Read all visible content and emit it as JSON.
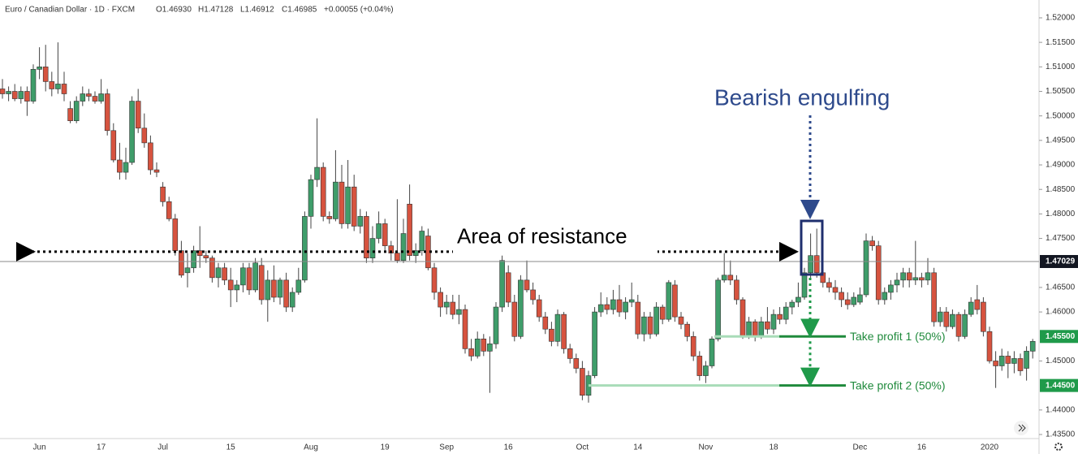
{
  "chart_data": {
    "type": "candlestick",
    "symbol": "Euro / Canadian Dollar · 1D · FXCM",
    "quote": [
      "O1.46930",
      "H1.47128",
      "L1.46912",
      "C1.46985",
      "+0.00055 (+0.04%)"
    ],
    "up_color": "#3f9d6a",
    "down_color": "#d6533f",
    "ylim": [
      1.43417,
      1.52364
    ],
    "yticks": [
      {
        "value": 1.52,
        "label": "1.52000"
      },
      {
        "value": 1.515,
        "label": "1.51500"
      },
      {
        "value": 1.51,
        "label": "1.51000"
      },
      {
        "value": 1.505,
        "label": "1.50500"
      },
      {
        "value": 1.5,
        "label": "1.50000"
      },
      {
        "value": 1.495,
        "label": "1.49500"
      },
      {
        "value": 1.49,
        "label": "1.49000"
      },
      {
        "value": 1.485,
        "label": "1.48500"
      },
      {
        "value": 1.48,
        "label": "1.48000"
      },
      {
        "value": 1.475,
        "label": "1.47500"
      },
      {
        "value": 1.465,
        "label": "1.46500"
      },
      {
        "value": 1.46,
        "label": "1.46000"
      },
      {
        "value": 1.45,
        "label": "1.45000"
      },
      {
        "value": 1.44,
        "label": "1.44000"
      },
      {
        "value": 1.435,
        "label": "1.43500"
      }
    ],
    "last_price": 1.47029,
    "resistance": {
      "label": "Area of resistance",
      "value": 1.4723
    },
    "pattern_label": "Bearish engulfing",
    "take_profits": [
      {
        "value": 1.455,
        "label": "1.45500",
        "text": "Take profit 1 (50%)"
      },
      {
        "value": 1.445,
        "label": "1.44500",
        "text": "Take profit 2 (50%)"
      }
    ],
    "categories": [
      null,
      null,
      null,
      null,
      null,
      null,
      "Jun",
      null,
      null,
      null,
      null,
      null,
      null,
      null,
      null,
      null,
      "17",
      null,
      null,
      null,
      null,
      null,
      null,
      null,
      null,
      null,
      "Jul",
      null,
      null,
      null,
      null,
      null,
      null,
      null,
      null,
      null,
      null,
      "15",
      null,
      null,
      null,
      null,
      null,
      null,
      null,
      null,
      null,
      null,
      null,
      null,
      "Aug",
      null,
      null,
      null,
      null,
      null,
      null,
      null,
      null,
      null,
      null,
      null,
      "19",
      null,
      null,
      null,
      null,
      null,
      null,
      null,
      null,
      null,
      "Sep",
      null,
      null,
      null,
      null,
      null,
      null,
      null,
      null,
      null,
      "16",
      null,
      null,
      null,
      null,
      null,
      null,
      null,
      null,
      null,
      null,
      null,
      "Oct",
      null,
      null,
      null,
      null,
      null,
      null,
      null,
      null,
      "14",
      null,
      null,
      null,
      null,
      null,
      null,
      null,
      null,
      null,
      null,
      "Nov",
      null,
      null,
      null,
      null,
      null,
      null,
      null,
      null,
      null,
      null,
      "18",
      null,
      null,
      null,
      null,
      null,
      null,
      null,
      null,
      null,
      null,
      null,
      null,
      null,
      "Dec",
      null,
      null,
      null,
      null,
      null,
      null,
      null,
      null,
      null,
      "16",
      null,
      null,
      null,
      null,
      null,
      null,
      null,
      null,
      null,
      null,
      "2020",
      null,
      null,
      null,
      null,
      null,
      null,
      null
    ],
    "ohlc": [
      [
        1.5055,
        1.5075,
        1.5035,
        1.5045
      ],
      [
        1.5045,
        1.506,
        1.503,
        1.505
      ],
      [
        1.505,
        1.5065,
        1.503,
        1.5035
      ],
      [
        1.5035,
        1.506,
        1.5025,
        1.505
      ],
      [
        1.505,
        1.506,
        1.5,
        1.503
      ],
      [
        1.503,
        1.5105,
        1.5025,
        1.5095
      ],
      [
        1.5095,
        1.514,
        1.5075,
        1.51
      ],
      [
        1.51,
        1.5145,
        1.505,
        1.507
      ],
      [
        1.507,
        1.509,
        1.504,
        1.5055
      ],
      [
        1.5055,
        1.515,
        1.5045,
        1.5065
      ],
      [
        1.5065,
        1.509,
        1.503,
        1.5045
      ],
      [
        1.5015,
        1.503,
        1.4985,
        1.499
      ],
      [
        1.499,
        1.504,
        1.4985,
        1.503
      ],
      [
        1.503,
        1.506,
        1.502,
        1.5045
      ],
      [
        1.5045,
        1.5055,
        1.503,
        1.504
      ],
      [
        1.504,
        1.505,
        1.5025,
        1.503
      ],
      [
        1.503,
        1.5075,
        1.5025,
        1.5045
      ],
      [
        1.5045,
        1.5055,
        1.496,
        1.497
      ],
      [
        1.497,
        1.4985,
        1.4905,
        1.491
      ],
      [
        1.491,
        1.4945,
        1.487,
        1.4885
      ],
      [
        1.4885,
        1.4935,
        1.487,
        1.4905
      ],
      [
        1.4905,
        1.504,
        1.49,
        1.503
      ],
      [
        1.503,
        1.5055,
        1.4965,
        1.4975
      ],
      [
        1.4975,
        1.5005,
        1.4935,
        1.4945
      ],
      [
        1.4945,
        1.496,
        1.488,
        1.489
      ],
      [
        1.489,
        1.4905,
        1.4875,
        1.4885
      ],
      [
        1.4855,
        1.4865,
        1.4815,
        1.4825
      ],
      [
        1.4825,
        1.4835,
        1.4785,
        1.479
      ],
      [
        1.479,
        1.48,
        1.4715,
        1.4725
      ],
      [
        1.4725,
        1.4745,
        1.467,
        1.4675
      ],
      [
        1.468,
        1.472,
        1.465,
        1.469
      ],
      [
        1.469,
        1.4735,
        1.468,
        1.4725
      ],
      [
        1.4725,
        1.4775,
        1.469,
        1.4715
      ],
      [
        1.4715,
        1.4725,
        1.47,
        1.471
      ],
      [
        1.471,
        1.4715,
        1.466,
        1.467
      ],
      [
        1.467,
        1.47,
        1.465,
        1.469
      ],
      [
        1.469,
        1.47,
        1.4655,
        1.4665
      ],
      [
        1.4665,
        1.469,
        1.461,
        1.4645
      ],
      [
        1.4645,
        1.4665,
        1.462,
        1.4655
      ],
      [
        1.4655,
        1.47,
        1.464,
        1.469
      ],
      [
        1.469,
        1.47,
        1.4635,
        1.4645
      ],
      [
        1.4645,
        1.471,
        1.464,
        1.47
      ],
      [
        1.4695,
        1.471,
        1.4615,
        1.4625
      ],
      [
        1.4625,
        1.4685,
        1.458,
        1.4665
      ],
      [
        1.4665,
        1.4695,
        1.462,
        1.463
      ],
      [
        1.463,
        1.467,
        1.4615,
        1.4665
      ],
      [
        1.4665,
        1.468,
        1.46,
        1.461
      ],
      [
        1.461,
        1.465,
        1.46,
        1.464
      ],
      [
        1.464,
        1.469,
        1.4635,
        1.4665
      ],
      [
        1.4665,
        1.4805,
        1.466,
        1.4795
      ],
      [
        1.4795,
        1.488,
        1.477,
        1.487
      ],
      [
        1.487,
        1.4995,
        1.4855,
        1.4895
      ],
      [
        1.4895,
        1.4905,
        1.4785,
        1.4795
      ],
      [
        1.4795,
        1.4805,
        1.478,
        1.479
      ],
      [
        1.479,
        1.493,
        1.4785,
        1.4865
      ],
      [
        1.4865,
        1.49,
        1.477,
        1.478
      ],
      [
        1.478,
        1.491,
        1.477,
        1.4855
      ],
      [
        1.4855,
        1.488,
        1.4765,
        1.4775
      ],
      [
        1.4775,
        1.481,
        1.476,
        1.4795
      ],
      [
        1.4795,
        1.4805,
        1.47,
        1.471
      ],
      [
        1.471,
        1.4775,
        1.47,
        1.475
      ],
      [
        1.475,
        1.4805,
        1.474,
        1.478
      ],
      [
        1.478,
        1.479,
        1.4725,
        1.4735
      ],
      [
        1.4735,
        1.4745,
        1.4705,
        1.472
      ],
      [
        1.472,
        1.483,
        1.47,
        1.4705
      ],
      [
        1.4705,
        1.479,
        1.47,
        1.476
      ],
      [
        1.482,
        1.486,
        1.4705,
        1.4715
      ],
      [
        1.4715,
        1.474,
        1.47,
        1.4725
      ],
      [
        1.4725,
        1.4775,
        1.4715,
        1.4765
      ],
      [
        1.4755,
        1.477,
        1.4685,
        1.469
      ],
      [
        1.469,
        1.47,
        1.4625,
        1.464
      ],
      [
        1.464,
        1.465,
        1.459,
        1.461
      ],
      [
        1.461,
        1.4635,
        1.4595,
        1.462
      ],
      [
        1.462,
        1.4635,
        1.4585,
        1.4595
      ],
      [
        1.4595,
        1.4635,
        1.4575,
        1.4605
      ],
      [
        1.4605,
        1.4615,
        1.4515,
        1.4525
      ],
      [
        1.4525,
        1.4545,
        1.45,
        1.451
      ],
      [
        1.451,
        1.456,
        1.4505,
        1.4545
      ],
      [
        1.4545,
        1.4555,
        1.451,
        1.452
      ],
      [
        1.452,
        1.455,
        1.4435,
        1.4535
      ],
      [
        1.4535,
        1.462,
        1.4525,
        1.461
      ],
      [
        1.461,
        1.4715,
        1.46,
        1.4705
      ],
      [
        1.468,
        1.4695,
        1.461,
        1.462
      ],
      [
        1.462,
        1.4635,
        1.454,
        1.455
      ],
      [
        1.455,
        1.4675,
        1.4545,
        1.4665
      ],
      [
        1.4665,
        1.4705,
        1.464,
        1.4645
      ],
      [
        1.4645,
        1.466,
        1.4615,
        1.4625
      ],
      [
        1.4625,
        1.4635,
        1.458,
        1.459
      ],
      [
        1.459,
        1.46,
        1.4555,
        1.4565
      ],
      [
        1.4565,
        1.458,
        1.453,
        1.454
      ],
      [
        1.454,
        1.4605,
        1.453,
        1.4595
      ],
      [
        1.4595,
        1.46,
        1.4515,
        1.4525
      ],
      [
        1.4525,
        1.4535,
        1.4495,
        1.4505
      ],
      [
        1.4505,
        1.4515,
        1.4475,
        1.4485
      ],
      [
        1.4485,
        1.45,
        1.442,
        1.443
      ],
      [
        1.443,
        1.448,
        1.4415,
        1.447
      ],
      [
        1.447,
        1.461,
        1.4465,
        1.46
      ],
      [
        1.46,
        1.464,
        1.459,
        1.4615
      ],
      [
        1.4615,
        1.463,
        1.4595,
        1.4605
      ],
      [
        1.4605,
        1.4645,
        1.4595,
        1.4625
      ],
      [
        1.4625,
        1.4655,
        1.459,
        1.46
      ],
      [
        1.46,
        1.463,
        1.4585,
        1.462
      ],
      [
        1.462,
        1.466,
        1.461,
        1.4625
      ],
      [
        1.462,
        1.4635,
        1.4545,
        1.4555
      ],
      [
        1.4555,
        1.46,
        1.454,
        1.459
      ],
      [
        1.459,
        1.46,
        1.4545,
        1.4555
      ],
      [
        1.4555,
        1.462,
        1.455,
        1.461
      ],
      [
        1.461,
        1.4615,
        1.4575,
        1.4585
      ],
      [
        1.4585,
        1.4665,
        1.458,
        1.466
      ],
      [
        1.4655,
        1.4665,
        1.458,
        1.459
      ],
      [
        1.459,
        1.46,
        1.4565,
        1.4575
      ],
      [
        1.4575,
        1.458,
        1.454,
        1.455
      ],
      [
        1.455,
        1.456,
        1.45,
        1.451
      ],
      [
        1.451,
        1.452,
        1.446,
        1.447
      ],
      [
        1.447,
        1.45,
        1.4455,
        1.449
      ],
      [
        1.449,
        1.455,
        1.4485,
        1.4545
      ],
      [
        1.4545,
        1.467,
        1.454,
        1.4665
      ],
      [
        1.4665,
        1.472,
        1.466,
        1.4675
      ],
      [
        1.4675,
        1.4705,
        1.4655,
        1.4665
      ],
      [
        1.4665,
        1.4675,
        1.4615,
        1.4625
      ],
      [
        1.4625,
        1.463,
        1.4545,
        1.455
      ],
      [
        1.455,
        1.459,
        1.4545,
        1.458
      ],
      [
        1.458,
        1.4585,
        1.454,
        1.455
      ],
      [
        1.455,
        1.459,
        1.4545,
        1.458
      ],
      [
        1.458,
        1.461,
        1.4555,
        1.4565
      ],
      [
        1.4565,
        1.4605,
        1.4555,
        1.4595
      ],
      [
        1.4595,
        1.461,
        1.4575,
        1.4585
      ],
      [
        1.4585,
        1.462,
        1.4575,
        1.461
      ],
      [
        1.461,
        1.4625,
        1.4595,
        1.462
      ],
      [
        1.462,
        1.466,
        1.461,
        1.463
      ],
      [
        1.463,
        1.469,
        1.4625,
        1.468
      ],
      [
        1.468,
        1.476,
        1.4665,
        1.4715
      ],
      [
        1.4715,
        1.477,
        1.467,
        1.468
      ],
      [
        1.468,
        1.469,
        1.465,
        1.466
      ],
      [
        1.466,
        1.467,
        1.464,
        1.465
      ],
      [
        1.465,
        1.4665,
        1.4625,
        1.464
      ],
      [
        1.464,
        1.465,
        1.461,
        1.4625
      ],
      [
        1.4625,
        1.464,
        1.4605,
        1.4615
      ],
      [
        1.4615,
        1.464,
        1.461,
        1.463
      ],
      [
        1.462,
        1.465,
        1.4615,
        1.4635
      ],
      [
        1.4635,
        1.476,
        1.463,
        1.4745
      ],
      [
        1.4745,
        1.4755,
        1.4725,
        1.4735
      ],
      [
        1.4735,
        1.4745,
        1.4615,
        1.4625
      ],
      [
        1.4625,
        1.465,
        1.4615,
        1.464
      ],
      [
        1.464,
        1.4665,
        1.4625,
        1.4655
      ],
      [
        1.4655,
        1.468,
        1.464,
        1.4665
      ],
      [
        1.4665,
        1.469,
        1.465,
        1.468
      ],
      [
        1.468,
        1.469,
        1.465,
        1.4665
      ],
      [
        1.4665,
        1.4745,
        1.4655,
        1.467
      ],
      [
        1.467,
        1.468,
        1.465,
        1.4665
      ],
      [
        1.4665,
        1.471,
        1.4655,
        1.468
      ],
      [
        1.468,
        1.469,
        1.457,
        1.458
      ],
      [
        1.458,
        1.461,
        1.457,
        1.46
      ],
      [
        1.46,
        1.461,
        1.456,
        1.457
      ],
      [
        1.457,
        1.4605,
        1.4565,
        1.4595
      ],
      [
        1.4595,
        1.46,
        1.454,
        1.455
      ],
      [
        1.455,
        1.4605,
        1.4545,
        1.4595
      ],
      [
        1.4595,
        1.463,
        1.459,
        1.462
      ],
      [
        1.4625,
        1.4655,
        1.4595,
        1.4605
      ],
      [
        1.462,
        1.463,
        1.455,
        1.456
      ],
      [
        1.456,
        1.457,
        1.4495,
        1.45
      ],
      [
        1.45,
        1.452,
        1.4445,
        1.449
      ],
      [
        1.449,
        1.4525,
        1.448,
        1.451
      ],
      [
        1.451,
        1.452,
        1.4465,
        1.4495
      ],
      [
        1.4495,
        1.452,
        1.4475,
        1.4505
      ],
      [
        1.4505,
        1.4515,
        1.447,
        1.448
      ],
      [
        1.4485,
        1.453,
        1.446,
        1.452
      ],
      [
        1.452,
        1.4545,
        1.4505,
        1.454
      ]
    ]
  }
}
